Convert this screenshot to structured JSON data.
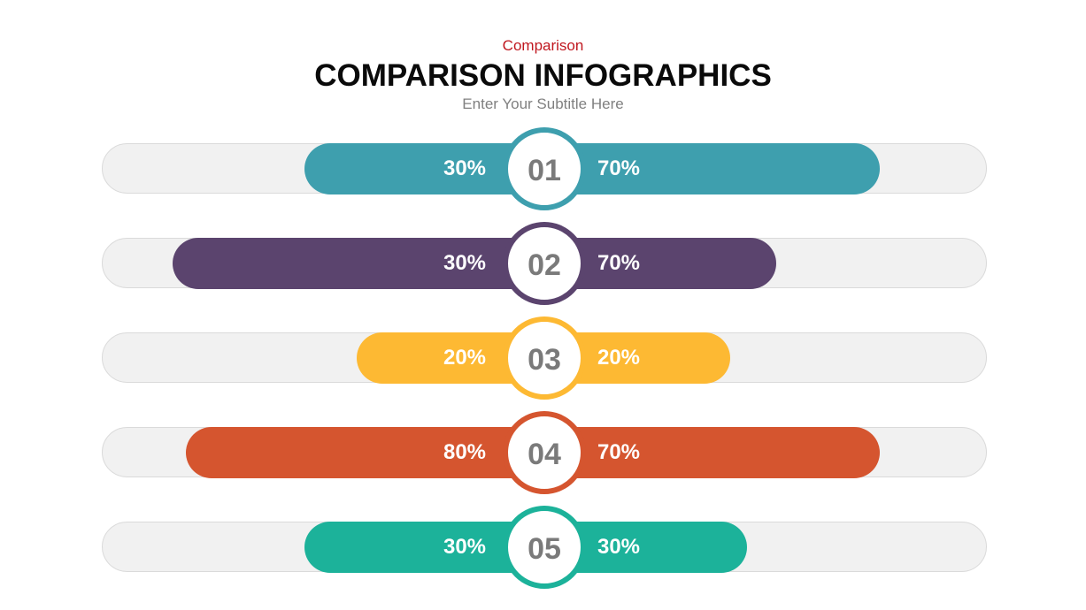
{
  "header": {
    "kicker": "Comparison",
    "title": "COMPARISON INFOGRAPHICS",
    "subtitle": "Enter Your Subtitle Here"
  },
  "colors": {
    "kicker": "#c0171f",
    "track": "#f1f1f1",
    "number_text": "#7a7a7a"
  },
  "rows": [
    {
      "number": "01",
      "left_label": "30%",
      "right_label": "70%",
      "color": "#3e9fae"
    },
    {
      "number": "02",
      "left_label": "30%",
      "right_label": "70%",
      "color": "#5b446e"
    },
    {
      "number": "03",
      "left_label": "20%",
      "right_label": "20%",
      "color": "#fdb933"
    },
    {
      "number": "04",
      "left_label": "80%",
      "right_label": "70%",
      "color": "#d5552f"
    },
    {
      "number": "05",
      "left_label": "30%",
      "right_label": "30%",
      "color": "#1cb29a"
    }
  ]
}
